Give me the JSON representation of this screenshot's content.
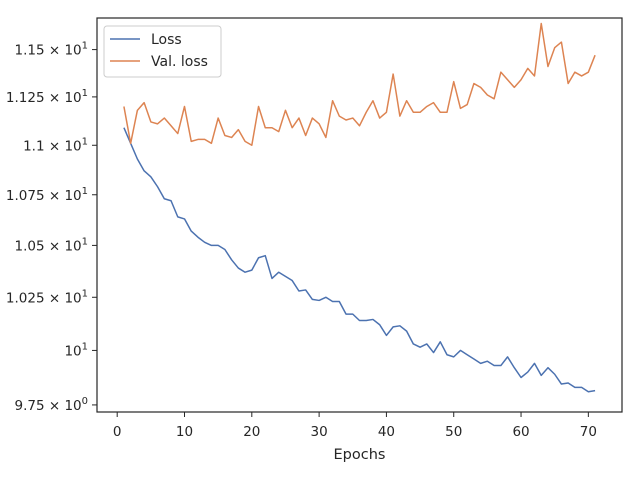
{
  "chart_data": {
    "type": "line",
    "title": "",
    "xlabel": "Epochs",
    "ylabel": "",
    "xlim": [
      -3,
      75
    ],
    "ylim": [
      9.718,
      11.67
    ],
    "y_scale": "log",
    "grid": false,
    "legend_position": "top-left",
    "x_ticks": [
      0,
      10,
      20,
      30,
      40,
      50,
      60,
      70
    ],
    "x_tick_labels": [
      "0",
      "10",
      "20",
      "30",
      "40",
      "50",
      "60",
      "70"
    ],
    "y_ticks": [
      9.75,
      10,
      10.25,
      10.5,
      10.75,
      11,
      11.25,
      11.5
    ],
    "y_tick_labels": [
      {
        "mantissa": "9.75",
        "base": "10",
        "exp": "0"
      },
      {
        "mantissa": "",
        "base": "10",
        "exp": "1"
      },
      {
        "mantissa": "1.025",
        "base": "10",
        "exp": "1"
      },
      {
        "mantissa": "1.05",
        "base": "10",
        "exp": "1"
      },
      {
        "mantissa": "1.075",
        "base": "10",
        "exp": "1"
      },
      {
        "mantissa": "1.1",
        "base": "10",
        "exp": "1"
      },
      {
        "mantissa": "1.125",
        "base": "10",
        "exp": "1"
      },
      {
        "mantissa": "1.15",
        "base": "10",
        "exp": "1"
      }
    ],
    "times_symbol": "×",
    "x": [
      1,
      2,
      3,
      4,
      5,
      6,
      7,
      8,
      9,
      10,
      11,
      12,
      13,
      14,
      15,
      16,
      17,
      18,
      19,
      20,
      21,
      22,
      23,
      24,
      25,
      26,
      27,
      28,
      29,
      30,
      31,
      32,
      33,
      34,
      35,
      36,
      37,
      38,
      39,
      40,
      41,
      42,
      43,
      44,
      45,
      46,
      47,
      48,
      49,
      50,
      51,
      52,
      53,
      54,
      55,
      56,
      57,
      58,
      59,
      60,
      61,
      62,
      63,
      64,
      65,
      66,
      67,
      68,
      69,
      70,
      71
    ],
    "series": [
      {
        "name": "Loss",
        "color": "#4c72b0",
        "values": [
          11.09,
          11.01,
          10.93,
          10.87,
          10.84,
          10.79,
          10.73,
          10.72,
          10.64,
          10.63,
          10.57,
          10.54,
          10.515,
          10.5,
          10.5,
          10.48,
          10.43,
          10.39,
          10.37,
          10.38,
          10.44,
          10.45,
          10.34,
          10.37,
          10.35,
          10.33,
          10.28,
          10.285,
          10.24,
          10.235,
          10.25,
          10.23,
          10.23,
          10.17,
          10.17,
          10.14,
          10.14,
          10.145,
          10.12,
          10.07,
          10.11,
          10.115,
          10.09,
          10.03,
          10.015,
          10.03,
          9.99,
          10.04,
          9.98,
          9.97,
          10.0,
          9.98,
          9.96,
          9.94,
          9.95,
          9.93,
          9.93,
          9.97,
          9.92,
          9.875,
          9.9,
          9.94,
          9.885,
          9.92,
          9.89,
          9.845,
          9.85,
          9.83,
          9.83,
          9.81,
          9.815
        ]
      },
      {
        "name": "Val. loss",
        "color": "#dd8452",
        "values": [
          11.2,
          11.01,
          11.18,
          11.22,
          11.12,
          11.11,
          11.14,
          11.1,
          11.06,
          11.2,
          11.02,
          11.03,
          11.03,
          11.01,
          11.14,
          11.05,
          11.04,
          11.08,
          11.02,
          11.0,
          11.2,
          11.09,
          11.09,
          11.07,
          11.18,
          11.09,
          11.14,
          11.05,
          11.14,
          11.11,
          11.04,
          11.23,
          11.15,
          11.13,
          11.14,
          11.1,
          11.17,
          11.23,
          11.14,
          11.17,
          11.37,
          11.15,
          11.23,
          11.17,
          11.17,
          11.2,
          11.22,
          11.17,
          11.17,
          11.33,
          11.19,
          11.21,
          11.32,
          11.3,
          11.26,
          11.24,
          11.38,
          11.34,
          11.3,
          11.34,
          11.4,
          11.36,
          11.64,
          11.41,
          11.51,
          11.54,
          11.32,
          11.38,
          11.36,
          11.38,
          11.47
        ]
      }
    ]
  }
}
